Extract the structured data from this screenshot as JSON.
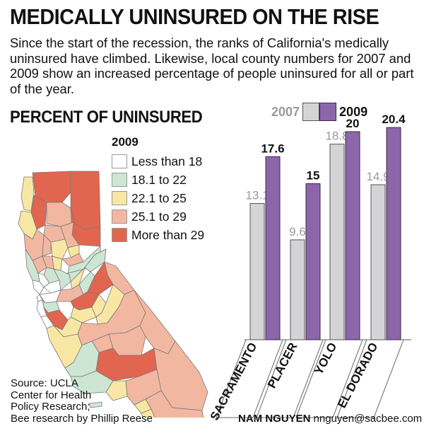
{
  "headline": "MEDICALLY UNINSURED ON THE RISE",
  "intro": "Since the start of the recession, the ranks of California's medically uninsured have climbed. Likewise, local county numbers for 2007 and 2009 show an increased percentage of people uninsured for all or part of the year.",
  "map_title": "PERCENT OF UNINSURED",
  "map_legend": {
    "title": "2009",
    "items": [
      {
        "label": "Less than 18",
        "color": "#ffffff"
      },
      {
        "label": "18.1 to 22",
        "color": "#cde6d3"
      },
      {
        "label": "22.1 to 25",
        "color": "#f8e7a4"
      },
      {
        "label": "25.1 to 29",
        "color": "#f2b7a1"
      },
      {
        "label": "More than 29",
        "color": "#e2654f"
      }
    ]
  },
  "source": {
    "line1": "Source: UCLA",
    "line2": "Center for Health",
    "line3": "Policy Research;",
    "line4": "Bee research by Phillip Reese"
  },
  "credit": {
    "name": "NAM NGUYEN",
    "email": "nnguyen@sacbee.com"
  },
  "chart_data": {
    "type": "bar",
    "title": "",
    "categories": [
      "SACRAMENTO",
      "PLACER",
      "YOLO",
      "EL DORADO"
    ],
    "series": [
      {
        "name": "2007",
        "values": [
          13.1,
          9.6,
          18.8,
          14.9
        ],
        "color": "#d4d4d6",
        "label_color": "#9a9a9a"
      },
      {
        "name": "2009",
        "values": [
          17.6,
          15,
          20,
          20.4
        ],
        "color": "#8c66a8",
        "label_color": "#111111"
      }
    ],
    "ylim": [
      0,
      21
    ],
    "grid": false,
    "legend_position": "top"
  }
}
